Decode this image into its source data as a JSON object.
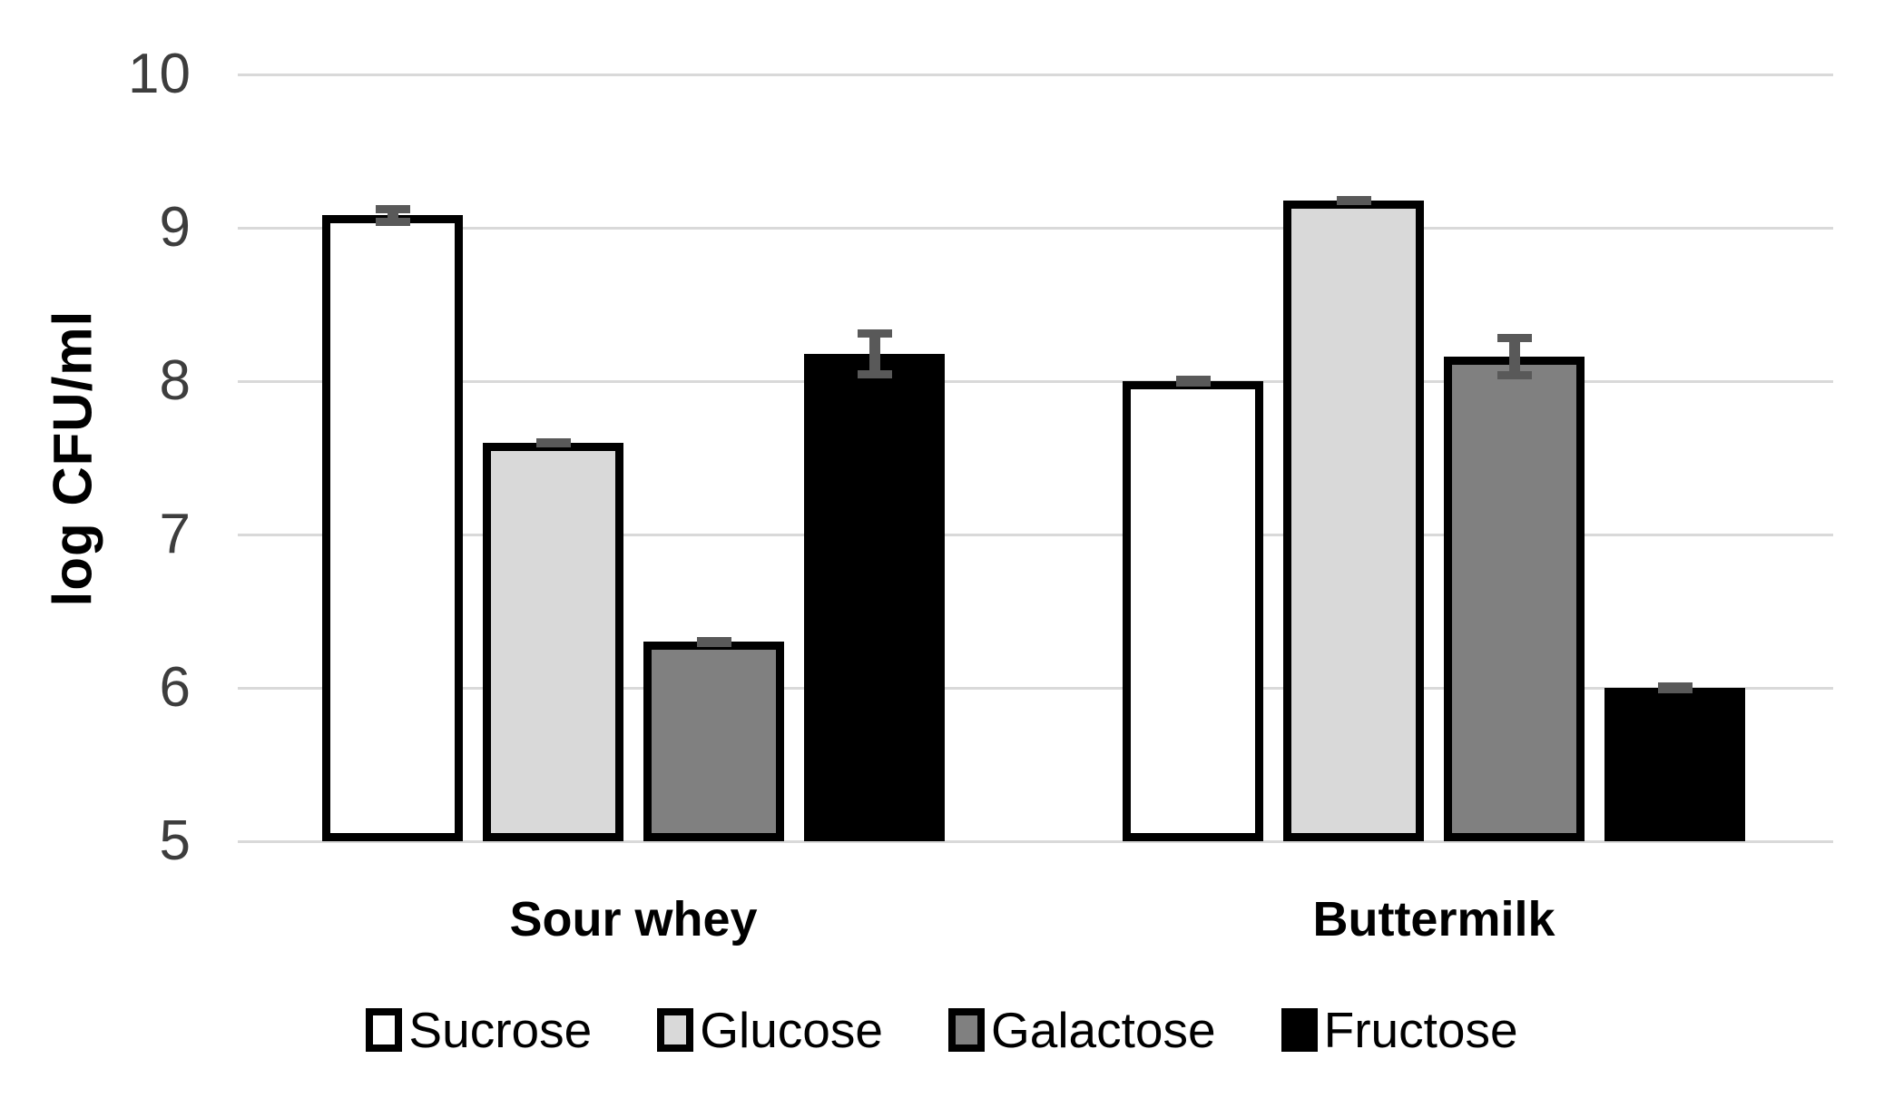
{
  "chart_data": {
    "type": "bar",
    "title": "",
    "xlabel": "",
    "ylabel": "log CFU/ml",
    "ylim": [
      5,
      10
    ],
    "yticks": [
      10,
      9,
      8,
      7,
      6,
      5
    ],
    "grid": true,
    "legend_position": "bottom",
    "categories": [
      "Sour whey",
      "Buttermilk"
    ],
    "series": [
      {
        "name": "Sucrose",
        "fill": "#ffffff",
        "border": "#000000",
        "values": [
          9.08,
          8.0
        ],
        "errors": [
          0.07,
          0.02
        ]
      },
      {
        "name": "Glucose",
        "fill": "#d9d9d9",
        "border": "#000000",
        "values": [
          7.6,
          9.18
        ],
        "errors": [
          0.03,
          0.03
        ]
      },
      {
        "name": "Galactose",
        "fill": "#808080",
        "border": "#000000",
        "values": [
          6.3,
          8.16
        ],
        "errors": [
          0.02,
          0.15
        ]
      },
      {
        "name": "Fructose",
        "fill": "#000000",
        "border": "#000000",
        "values": [
          8.18,
          6.0
        ],
        "errors": [
          0.16,
          0.02
        ]
      }
    ],
    "colors": {
      "gridline": "#d9d9d9",
      "error_bar": "#595959",
      "tick_text": "#3d3d3d",
      "label_text": "#000000",
      "background": "#ffffff"
    }
  }
}
